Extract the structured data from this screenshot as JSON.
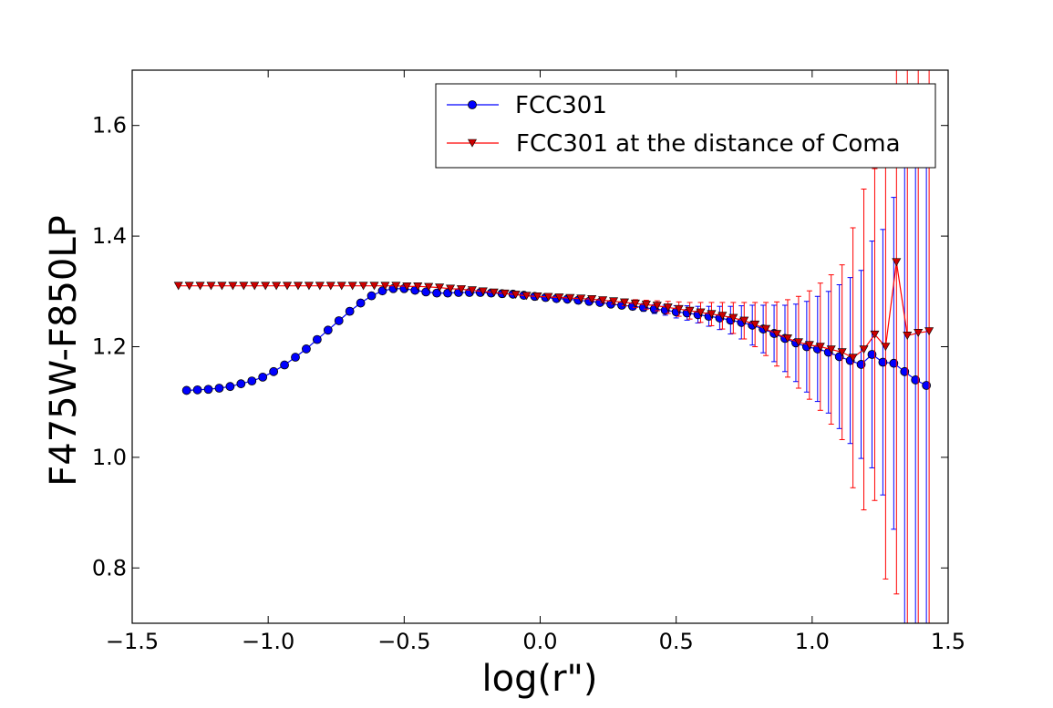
{
  "colors": {
    "series_blue": "#0000ff",
    "series_red": "#ff0000",
    "marker_red_fill": "#cc0000"
  },
  "chart_data": {
    "type": "line",
    "title": "",
    "xlabel": "log(r\")",
    "ylabel": "F475W-F850LP",
    "xlim": [
      -1.5,
      1.5
    ],
    "ylim": [
      0.7,
      1.7
    ],
    "xticks": [
      -1.5,
      -1.0,
      -0.5,
      0.0,
      0.5,
      1.0,
      1.5
    ],
    "xtick_labels": [
      "−1.5",
      "−1.0",
      "−0.5",
      "0.0",
      "0.5",
      "1.0",
      "1.5"
    ],
    "yticks": [
      0.8,
      1.0,
      1.2,
      1.4,
      1.6
    ],
    "ytick_labels": [
      "0.8",
      "1.0",
      "1.2",
      "1.4",
      "1.6"
    ],
    "grid": false,
    "legend_position": "top-right",
    "series": [
      {
        "name": "FCC301",
        "marker": "circle",
        "color": "#0000ff",
        "x": [
          -1.3,
          -1.26,
          -1.22,
          -1.18,
          -1.14,
          -1.1,
          -1.06,
          -1.02,
          -0.98,
          -0.94,
          -0.9,
          -0.86,
          -0.82,
          -0.78,
          -0.74,
          -0.7,
          -0.66,
          -0.62,
          -0.58,
          -0.54,
          -0.5,
          -0.46,
          -0.42,
          -0.38,
          -0.34,
          -0.3,
          -0.26,
          -0.22,
          -0.18,
          -0.14,
          -0.1,
          -0.06,
          -0.02,
          0.02,
          0.06,
          0.1,
          0.14,
          0.18,
          0.22,
          0.26,
          0.3,
          0.34,
          0.38,
          0.42,
          0.46,
          0.5,
          0.54,
          0.58,
          0.62,
          0.66,
          0.7,
          0.74,
          0.78,
          0.82,
          0.86,
          0.9,
          0.94,
          0.98,
          1.02,
          1.06,
          1.1,
          1.14,
          1.18,
          1.22,
          1.26,
          1.3,
          1.34,
          1.38,
          1.42
        ],
        "y": [
          1.121,
          1.122,
          1.123,
          1.125,
          1.128,
          1.133,
          1.138,
          1.145,
          1.155,
          1.167,
          1.181,
          1.196,
          1.213,
          1.23,
          1.247,
          1.264,
          1.279,
          1.292,
          1.301,
          1.305,
          1.305,
          1.302,
          1.299,
          1.297,
          1.297,
          1.298,
          1.298,
          1.298,
          1.297,
          1.296,
          1.295,
          1.293,
          1.291,
          1.289,
          1.287,
          1.286,
          1.284,
          1.282,
          1.28,
          1.277,
          1.275,
          1.273,
          1.271,
          1.268,
          1.266,
          1.263,
          1.261,
          1.258,
          1.255,
          1.252,
          1.248,
          1.244,
          1.239,
          1.232,
          1.224,
          1.215,
          1.207,
          1.2,
          1.196,
          1.19,
          1.182,
          1.175,
          1.168,
          1.186,
          1.172,
          1.17,
          1.155,
          1.14,
          1.13
        ],
        "yerr": [
          0.0,
          0.0,
          0.0,
          0.0,
          0.0,
          0.0,
          0.0,
          0.0,
          0.0,
          0.0,
          0.0,
          0.0,
          0.0,
          0.0,
          0.0,
          0.0,
          0.0,
          0.0,
          0.0,
          0.0,
          0.0,
          0.0,
          0.0,
          0.0,
          0.0,
          0.0,
          0.0,
          0.0,
          0.0,
          0.0,
          0.0,
          0.0,
          0.0,
          0.0,
          0.0,
          0.0,
          0.0,
          0.0,
          0.003,
          0.004,
          0.005,
          0.006,
          0.007,
          0.008,
          0.009,
          0.011,
          0.013,
          0.015,
          0.018,
          0.021,
          0.025,
          0.03,
          0.036,
          0.043,
          0.051,
          0.06,
          0.07,
          0.082,
          0.095,
          0.11,
          0.13,
          0.15,
          0.17,
          0.205,
          0.24,
          0.3,
          0.48,
          0.48,
          0.48
        ]
      },
      {
        "name": "FCC301 at the distance of Coma",
        "marker": "triangle-down",
        "color": "#ff0000",
        "x": [
          -1.33,
          -1.29,
          -1.25,
          -1.21,
          -1.17,
          -1.13,
          -1.09,
          -1.05,
          -1.01,
          -0.97,
          -0.93,
          -0.89,
          -0.85,
          -0.81,
          -0.77,
          -0.73,
          -0.69,
          -0.65,
          -0.61,
          -0.57,
          -0.53,
          -0.49,
          -0.45,
          -0.41,
          -0.37,
          -0.33,
          -0.29,
          -0.25,
          -0.21,
          -0.17,
          -0.13,
          -0.09,
          -0.05,
          -0.01,
          0.03,
          0.07,
          0.11,
          0.15,
          0.19,
          0.23,
          0.27,
          0.31,
          0.35,
          0.39,
          0.43,
          0.47,
          0.51,
          0.55,
          0.59,
          0.63,
          0.67,
          0.71,
          0.75,
          0.79,
          0.83,
          0.87,
          0.91,
          0.95,
          0.99,
          1.03,
          1.07,
          1.11,
          1.15,
          1.19,
          1.23,
          1.27,
          1.31,
          1.35,
          1.39,
          1.43
        ],
        "y": [
          1.31,
          1.31,
          1.31,
          1.31,
          1.31,
          1.31,
          1.31,
          1.31,
          1.31,
          1.31,
          1.31,
          1.31,
          1.31,
          1.31,
          1.31,
          1.31,
          1.31,
          1.31,
          1.31,
          1.31,
          1.31,
          1.309,
          1.309,
          1.308,
          1.307,
          1.305,
          1.304,
          1.302,
          1.3,
          1.298,
          1.296,
          1.294,
          1.292,
          1.291,
          1.29,
          1.289,
          1.288,
          1.287,
          1.286,
          1.284,
          1.282,
          1.28,
          1.278,
          1.276,
          1.274,
          1.271,
          1.268,
          1.265,
          1.262,
          1.259,
          1.256,
          1.252,
          1.247,
          1.24,
          1.232,
          1.223,
          1.215,
          1.208,
          1.203,
          1.2,
          1.195,
          1.19,
          1.18,
          1.195,
          1.222,
          1.2,
          1.353,
          1.22,
          1.225,
          1.228
        ],
        "yerr": [
          0.0,
          0.0,
          0.0,
          0.0,
          0.0,
          0.0,
          0.0,
          0.0,
          0.0,
          0.0,
          0.0,
          0.0,
          0.0,
          0.0,
          0.0,
          0.0,
          0.0,
          0.0,
          0.0,
          0.0,
          0.0,
          0.0,
          0.0,
          0.0,
          0.0,
          0.0,
          0.0,
          0.0,
          0.0,
          0.0,
          0.0,
          0.0,
          0.0,
          0.0,
          0.0,
          0.0,
          0.0,
          0.0,
          0.003,
          0.004,
          0.005,
          0.006,
          0.007,
          0.008,
          0.009,
          0.011,
          0.013,
          0.015,
          0.018,
          0.021,
          0.024,
          0.028,
          0.033,
          0.04,
          0.048,
          0.058,
          0.07,
          0.083,
          0.098,
          0.115,
          0.135,
          0.158,
          0.235,
          0.29,
          0.3,
          0.42,
          0.6,
          0.6,
          0.6,
          0.6
        ]
      }
    ]
  }
}
